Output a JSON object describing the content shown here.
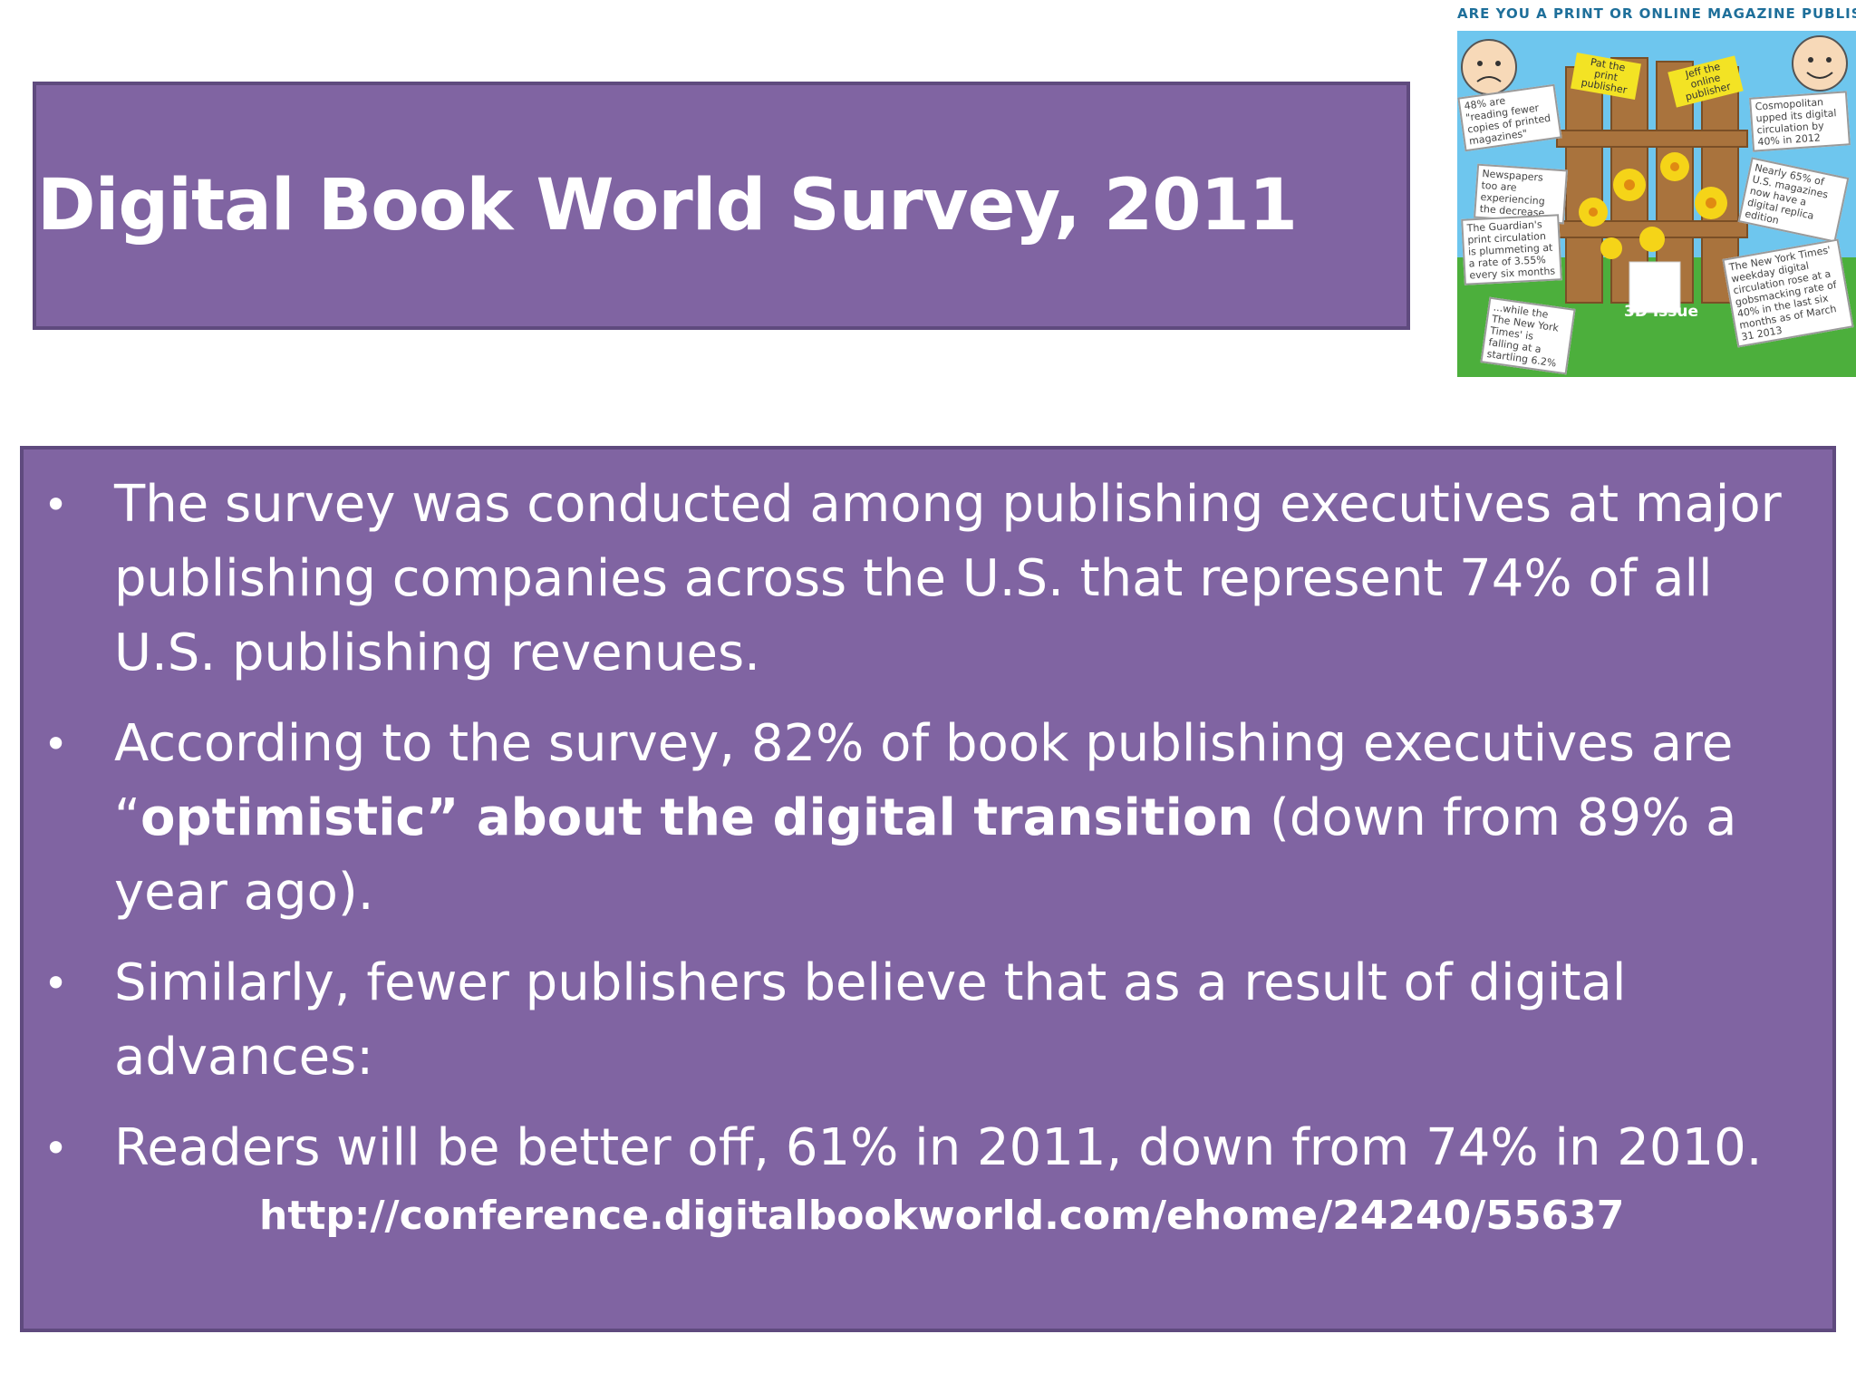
{
  "title": "Digital Book World Survey, 2011",
  "bullets": [
    {
      "text_before": "The survey was conducted among publishing executives at major publishing companies across the U.S. that represent 74% of all U.S. publishing revenues.",
      "bold": "",
      "text_after": ""
    },
    {
      "text_before": "According to the survey, 82% of book publishing executives are “",
      "bold": "optimistic” about the digital transition",
      "text_after": " (down from 89% a year ago)."
    },
    {
      "text_before": "Similarly, fewer publishers believe that as a result of digital advances:",
      "bold": "",
      "text_after": ""
    },
    {
      "text_before": "Readers will be better off, 61% in 2011, down from 74% in 2010.",
      "bold": "",
      "text_after": ""
    }
  ],
  "bullet_symbol": "•",
  "url": "http://conference.digitalbookworld.com/ehome/24240/55637",
  "infographic": {
    "caption": "ARE YOU A PRINT OR ONLINE MAGAZINE PUBLISHER?",
    "sign_left": "Pat the print publisher",
    "sign_right": "Jeff the online publisher",
    "notes_left": [
      "48% are \"reading fewer copies of printed magazines\"",
      "Newspapers too are experiencing the decrease",
      "The Guardian's print circulation is plummeting at a rate of 3.55% every six months",
      "...while the The New York Times' is falling at a startling 6.2%"
    ],
    "notes_right": [
      "Cosmopolitan upped its digital circulation by 40% in 2012",
      "Nearly 65% of U.S. magazines now have a digital replica edition",
      "The New York Times' weekday digital circulation rose at a gobsmacking rate of 40% in the last six months as of March 31 2013"
    ],
    "issue_label": "3D Issue",
    "colors": {
      "sky": "#6ec6ee",
      "grass": "#4caf3c",
      "fence": "#a9733d",
      "flower": "#f5d418",
      "caption": "#1e6f9a"
    }
  },
  "colors": {
    "panel_fill": "#8064a2",
    "panel_border": "#5f4a7e",
    "text": "#ffffff",
    "background": "#ffffff"
  }
}
